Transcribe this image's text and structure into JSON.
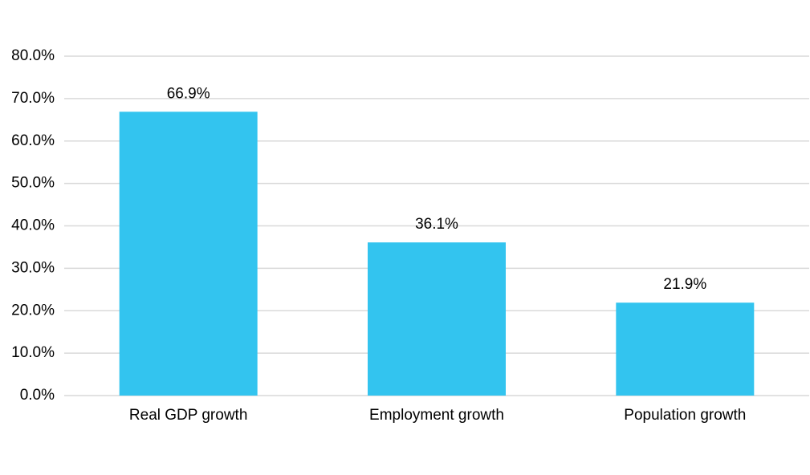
{
  "chart_data": {
    "type": "bar",
    "categories": [
      "Real GDP growth",
      "Employment growth",
      "Population growth"
    ],
    "values": [
      66.9,
      36.1,
      21.9
    ],
    "value_labels": [
      "66.9%",
      "36.1%",
      "21.9%"
    ],
    "color": "#33c4ef",
    "ylim": [
      0,
      80
    ],
    "yticks": [
      {
        "value": 0,
        "label": "0.0%"
      },
      {
        "value": 10,
        "label": "10.0%"
      },
      {
        "value": 20,
        "label": "20.0%"
      },
      {
        "value": 30,
        "label": "30.0%"
      },
      {
        "value": 40,
        "label": "40.0%"
      },
      {
        "value": 50,
        "label": "50.0%"
      },
      {
        "value": 60,
        "label": "60.0%"
      },
      {
        "value": 70,
        "label": "70.0%"
      },
      {
        "value": 80,
        "label": "80.0%"
      }
    ],
    "grid": true
  }
}
